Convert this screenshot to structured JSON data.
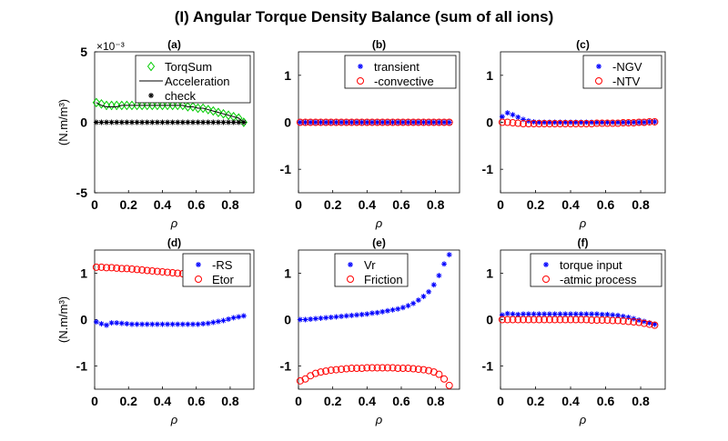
{
  "chart_data": {
    "type": "scatter",
    "title": "(I) Angular Torque Density Balance (sum of all ions)",
    "x": [
      0.01,
      0.04,
      0.07,
      0.1,
      0.13,
      0.16,
      0.19,
      0.22,
      0.25,
      0.28,
      0.31,
      0.34,
      0.37,
      0.4,
      0.43,
      0.46,
      0.49,
      0.52,
      0.55,
      0.58,
      0.61,
      0.64,
      0.67,
      0.7,
      0.73,
      0.76,
      0.79,
      0.82,
      0.85,
      0.88
    ],
    "panels": [
      {
        "title": "(a)",
        "xlabel": "ρ",
        "ylabel": "(N.m/m³)",
        "xlim": [
          0,
          0.94
        ],
        "ylim": [
          -5,
          5
        ],
        "yticks": [
          "-5",
          "0",
          "5"
        ],
        "y_multiplier": "×10⁻³",
        "xticks": [
          "0",
          "0.2",
          "0.4",
          "0.6",
          "0.8"
        ],
        "legend": "top-right",
        "series": [
          {
            "name": "TorqSum",
            "marker": "diamond",
            "color": "#00cc00",
            "values": [
              1.4,
              1.3,
              1.2,
              1.2,
              1.2,
              1.2,
              1.2,
              1.2,
              1.2,
              1.2,
              1.2,
              1.2,
              1.2,
              1.2,
              1.2,
              1.2,
              1.2,
              1.2,
              1.1,
              1.1,
              1.0,
              1.0,
              0.9,
              0.8,
              0.7,
              0.6,
              0.5,
              0.4,
              0.3,
              0.0
            ]
          },
          {
            "name": "Acceleration",
            "marker": "line",
            "color": "#000000",
            "values": [
              1.4,
              1.2,
              1.1,
              1.1,
              1.1,
              1.2,
              1.2,
              1.2,
              1.2,
              1.2,
              1.2,
              1.2,
              1.2,
              1.2,
              1.2,
              1.2,
              1.2,
              1.2,
              1.1,
              1.1,
              1.0,
              1.0,
              0.9,
              0.8,
              0.7,
              0.6,
              0.5,
              0.4,
              0.3,
              0.0
            ]
          },
          {
            "name": "check",
            "marker": "star",
            "color": "#000000",
            "values": [
              0,
              0,
              0,
              0,
              0,
              0,
              0,
              0,
              0,
              0,
              0,
              0,
              0,
              0,
              0,
              0,
              0,
              0,
              0,
              0,
              0,
              0,
              0,
              0,
              0,
              0,
              0,
              0,
              0,
              0
            ]
          }
        ]
      },
      {
        "title": "(b)",
        "xlabel": "ρ",
        "ylabel": "",
        "xlim": [
          0,
          0.94
        ],
        "ylim": [
          -1.5,
          1.5
        ],
        "yticks": [
          "-1",
          "0",
          "1"
        ],
        "xticks": [
          "0",
          "0.2",
          "0.4",
          "0.6",
          "0.8"
        ],
        "legend": "top-right",
        "series": [
          {
            "name": "transient",
            "marker": "star",
            "color": "#0000ff",
            "values": [
              0,
              0,
              0,
              0,
              0,
              0,
              0,
              0,
              0,
              0,
              0,
              0,
              0,
              0,
              0,
              0,
              0,
              0,
              0,
              0,
              0,
              0,
              0,
              0,
              0,
              0,
              0,
              0,
              0,
              0
            ]
          },
          {
            "name": "-convective",
            "marker": "circle",
            "color": "#ff0000",
            "values": [
              0,
              0,
              0,
              0,
              0,
              0,
              0,
              0,
              0,
              0,
              0,
              0,
              0,
              0,
              0,
              0,
              0,
              0,
              0,
              0,
              0,
              0,
              0,
              0,
              0,
              0,
              0,
              0,
              0,
              0
            ]
          }
        ]
      },
      {
        "title": "(c)",
        "xlabel": "ρ",
        "ylabel": "",
        "xlim": [
          0,
          0.94
        ],
        "ylim": [
          -1.5,
          1.5
        ],
        "yticks": [
          "-1",
          "0",
          "1"
        ],
        "xticks": [
          "0",
          "0.2",
          "0.4",
          "0.6",
          "0.8"
        ],
        "legend": "top-right",
        "series": [
          {
            "name": "-NGV",
            "marker": "star",
            "color": "#0000ff",
            "values": [
              0.12,
              0.2,
              0.16,
              0.11,
              0.06,
              0.03,
              0.01,
              0,
              0,
              0,
              0,
              0,
              0,
              0,
              0,
              0,
              0,
              0,
              0,
              0,
              0,
              0,
              0,
              0,
              0,
              0,
              0,
              0,
              0.01,
              0.01
            ]
          },
          {
            "name": "-NTV",
            "marker": "circle",
            "color": "#ff0000",
            "values": [
              0,
              0,
              -0.01,
              -0.02,
              -0.03,
              -0.03,
              -0.03,
              -0.03,
              -0.03,
              -0.03,
              -0.03,
              -0.03,
              -0.03,
              -0.03,
              -0.03,
              -0.03,
              -0.03,
              -0.03,
              -0.02,
              -0.02,
              -0.02,
              -0.02,
              -0.02,
              -0.01,
              -0.01,
              -0.01,
              0,
              0,
              0.01,
              0.01
            ]
          }
        ]
      },
      {
        "title": "(d)",
        "xlabel": "ρ",
        "ylabel": "(N.m/m³)",
        "xlim": [
          0,
          0.94
        ],
        "ylim": [
          -1.5,
          1.5
        ],
        "yticks": [
          "-1",
          "0",
          "1"
        ],
        "xticks": [
          "0",
          "0.2",
          "0.4",
          "0.6",
          "0.8"
        ],
        "legend": "top-right",
        "series": [
          {
            "name": "-RS",
            "marker": "star",
            "color": "#0000ff",
            "values": [
              -0.05,
              -0.09,
              -0.12,
              -0.07,
              -0.07,
              -0.08,
              -0.09,
              -0.1,
              -0.1,
              -0.1,
              -0.1,
              -0.1,
              -0.1,
              -0.1,
              -0.1,
              -0.1,
              -0.1,
              -0.1,
              -0.1,
              -0.1,
              -0.1,
              -0.09,
              -0.08,
              -0.06,
              -0.04,
              -0.02,
              0.01,
              0.04,
              0.06,
              0.08
            ]
          },
          {
            "name": "Etor",
            "marker": "circle",
            "color": "#ff0000",
            "values": [
              1.13,
              1.13,
              1.12,
              1.12,
              1.11,
              1.1,
              1.1,
              1.09,
              1.08,
              1.07,
              1.06,
              1.05,
              1.04,
              1.03,
              1.02,
              1.01,
              1.0,
              0.99,
              0.98,
              0.97,
              0.96,
              0.95,
              0.93,
              0.92,
              0.9,
              0.89,
              0.87,
              0.85,
              0.83,
              0.82
            ]
          }
        ]
      },
      {
        "title": "(e)",
        "xlabel": "ρ",
        "ylabel": "",
        "xlim": [
          0,
          0.94
        ],
        "ylim": [
          -1.5,
          1.5
        ],
        "yticks": [
          "-1",
          "0",
          "1"
        ],
        "xticks": [
          "0",
          "0.2",
          "0.4",
          "0.6",
          "0.8"
        ],
        "legend": "top-left",
        "series": [
          {
            "name": "Vr",
            "marker": "star",
            "color": "#0000ff",
            "values": [
              0,
              0,
              0.01,
              0.02,
              0.03,
              0.04,
              0.05,
              0.06,
              0.07,
              0.08,
              0.09,
              0.1,
              0.11,
              0.12,
              0.14,
              0.15,
              0.17,
              0.19,
              0.21,
              0.23,
              0.26,
              0.3,
              0.35,
              0.42,
              0.5,
              0.6,
              0.75,
              0.95,
              1.2,
              1.4
            ]
          },
          {
            "name": "Friction",
            "marker": "circle",
            "color": "#ff0000",
            "values": [
              -1.32,
              -1.28,
              -1.21,
              -1.16,
              -1.13,
              -1.11,
              -1.09,
              -1.08,
              -1.07,
              -1.06,
              -1.05,
              -1.05,
              -1.05,
              -1.04,
              -1.04,
              -1.04,
              -1.04,
              -1.04,
              -1.04,
              -1.05,
              -1.05,
              -1.05,
              -1.06,
              -1.07,
              -1.08,
              -1.1,
              -1.13,
              -1.18,
              -1.28,
              -1.42
            ]
          }
        ]
      },
      {
        "title": "(f)",
        "xlabel": "ρ",
        "ylabel": "",
        "xlim": [
          0,
          0.94
        ],
        "ylim": [
          -1.5,
          1.5
        ],
        "yticks": [
          "-1",
          "0",
          "1"
        ],
        "xticks": [
          "0",
          "0.2",
          "0.4",
          "0.6",
          "0.8"
        ],
        "legend": "top-right",
        "series": [
          {
            "name": "torque input",
            "marker": "star",
            "color": "#0000ff",
            "values": [
              0.1,
              0.13,
              0.12,
              0.11,
              0.12,
              0.12,
              0.12,
              0.12,
              0.12,
              0.12,
              0.12,
              0.12,
              0.12,
              0.12,
              0.12,
              0.12,
              0.12,
              0.12,
              0.12,
              0.11,
              0.11,
              0.1,
              0.09,
              0.07,
              0.05,
              0.02,
              -0.01,
              -0.04,
              -0.07,
              -0.1
            ]
          },
          {
            "name": "-atmic process",
            "marker": "circle",
            "color": "#ff0000",
            "values": [
              0,
              0,
              0,
              0,
              0,
              0,
              0,
              0,
              0,
              0,
              0,
              0,
              0,
              0,
              0,
              0,
              0,
              -0.01,
              -0.01,
              -0.01,
              -0.01,
              -0.02,
              -0.02,
              -0.03,
              -0.04,
              -0.05,
              -0.06,
              -0.08,
              -0.1,
              -0.12
            ]
          }
        ]
      }
    ]
  }
}
